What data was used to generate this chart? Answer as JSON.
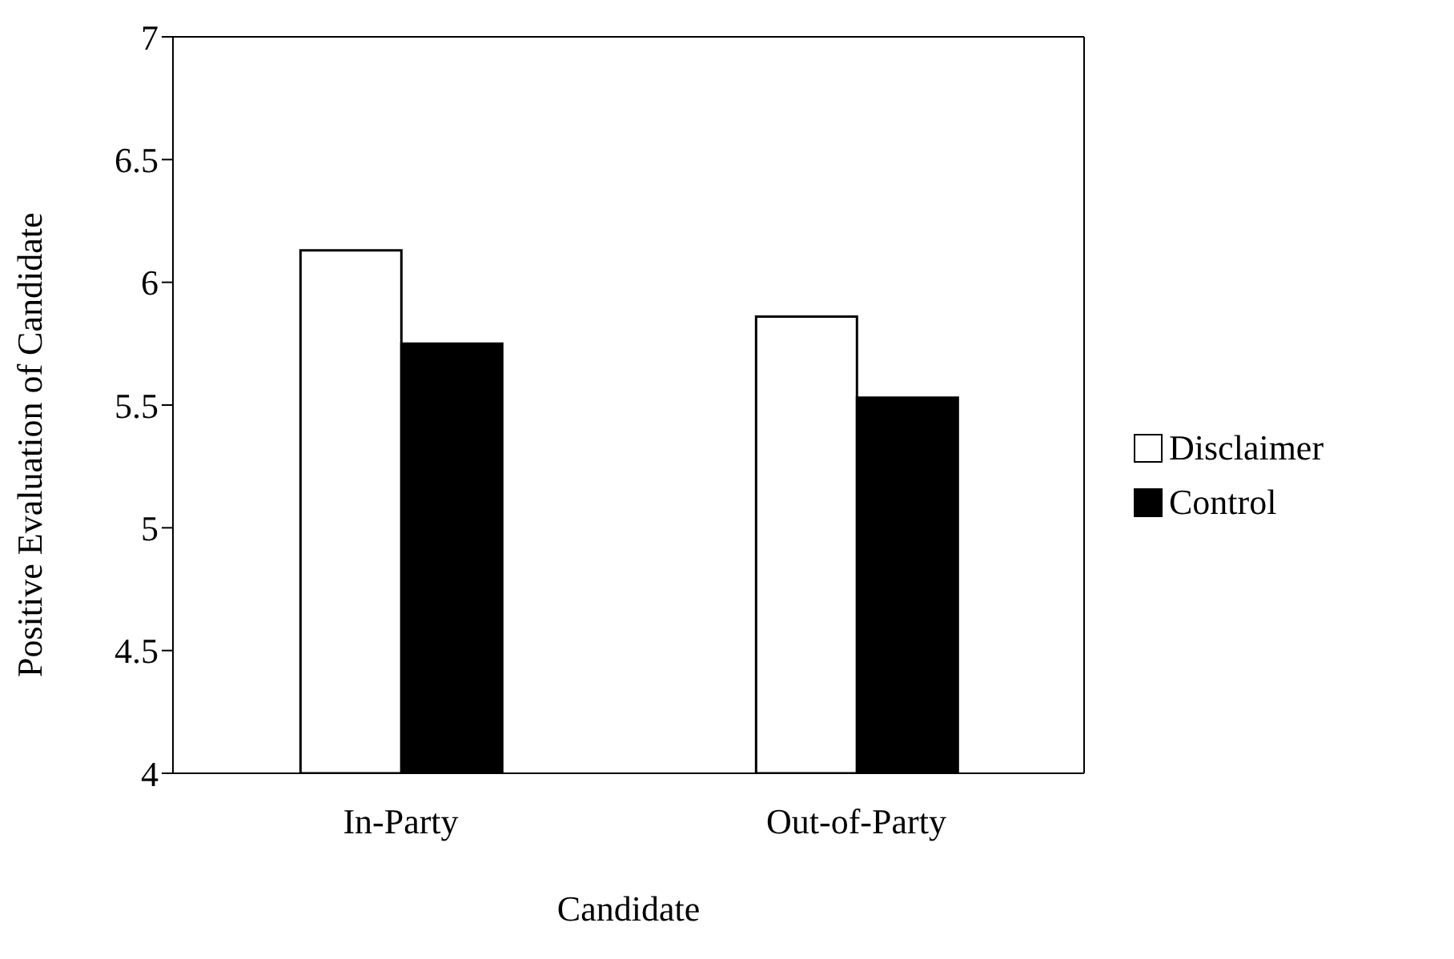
{
  "chart_data": {
    "type": "bar",
    "xlabel": "Candidate",
    "ylabel": "Positive Evaluation of Candidate",
    "categories": [
      "In-Party",
      "Out-of-Party"
    ],
    "series": [
      {
        "name": "Disclaimer",
        "color": "#ffffff",
        "values": [
          6.13,
          5.86
        ]
      },
      {
        "name": "Control",
        "color": "#000000",
        "values": [
          5.75,
          5.53
        ]
      }
    ],
    "ylim": [
      4,
      7
    ],
    "yticks": [
      4,
      4.5,
      5,
      5.5,
      6,
      6.5,
      7
    ],
    "grid": false,
    "legend": "right"
  }
}
